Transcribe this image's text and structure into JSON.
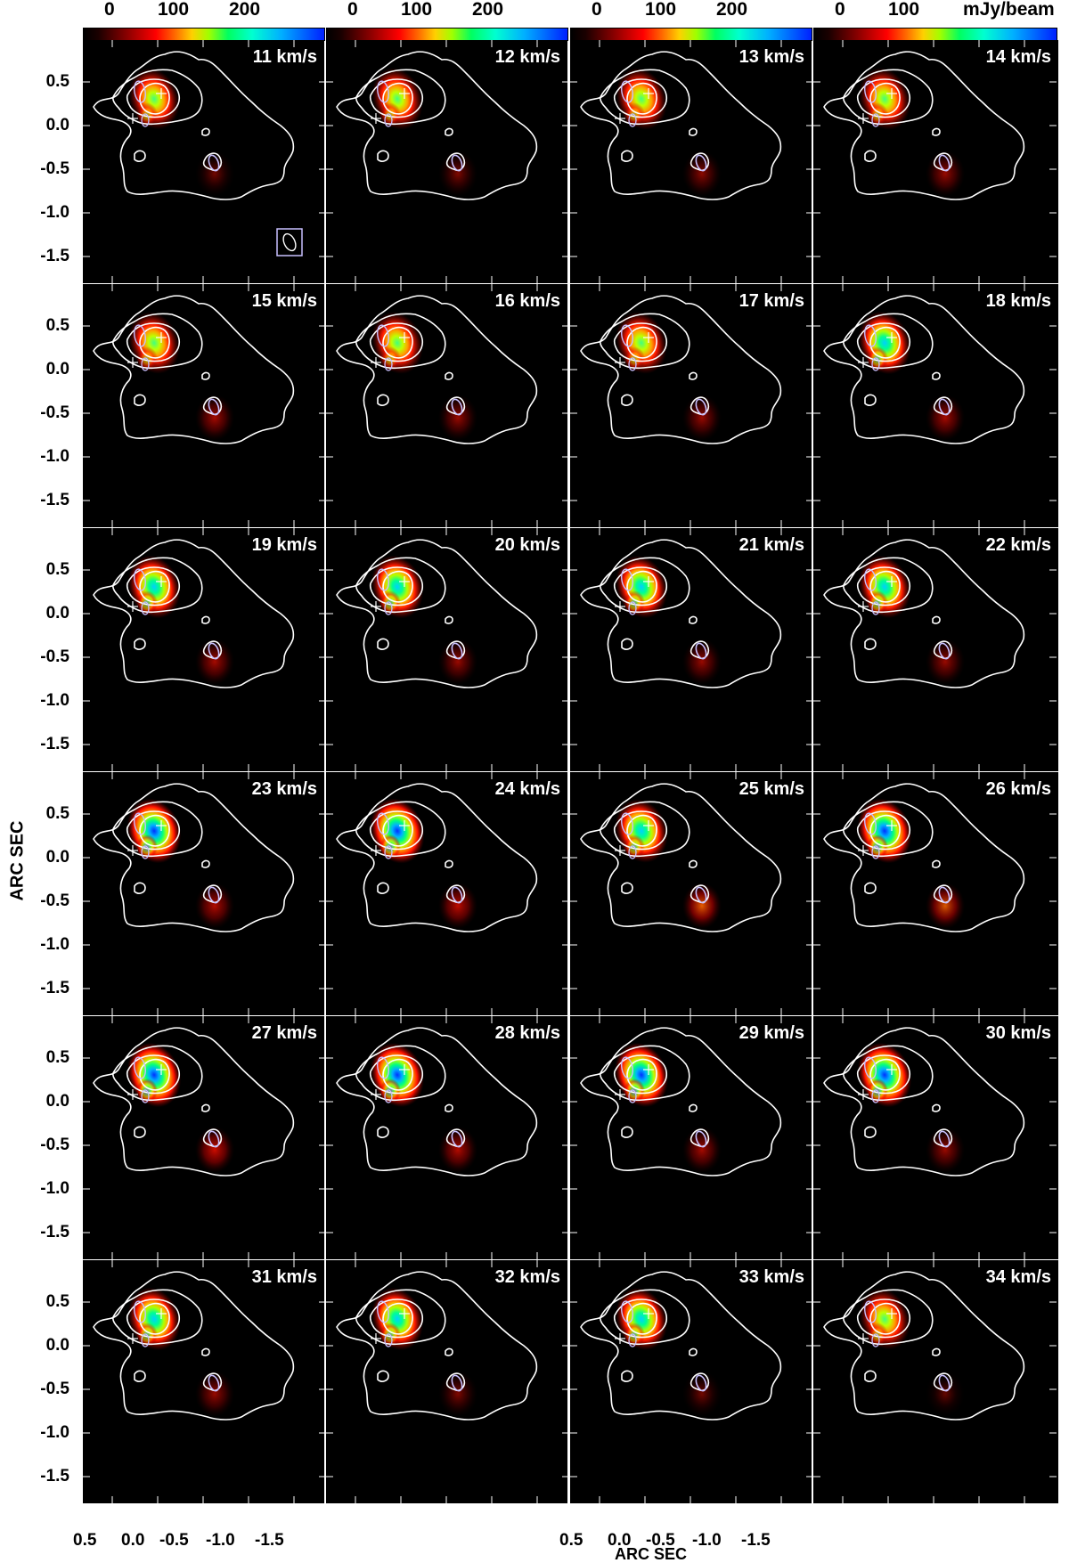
{
  "colorbar": {
    "ticks": [
      "0",
      "100",
      "200"
    ],
    "unit": "mJy/beam"
  },
  "axes": {
    "xlabel": "ARC SEC",
    "ylabel": "ARC SEC",
    "yticks": [
      "0.5",
      "0.0",
      "-0.5",
      "-1.0",
      "-1.5"
    ],
    "xticks": [
      "0.5",
      "0.0",
      "-0.5",
      "-1.0",
      "-1.5"
    ]
  },
  "panels": [
    {
      "velocity": "11 km/s",
      "core_peak": 0.55,
      "south_peak": 0.15
    },
    {
      "velocity": "12 km/s",
      "core_peak": 0.6,
      "south_peak": 0.2
    },
    {
      "velocity": "13 km/s",
      "core_peak": 0.6,
      "south_peak": 0.25
    },
    {
      "velocity": "14 km/s",
      "core_peak": 0.62,
      "south_peak": 0.3
    },
    {
      "velocity": "15 km/s",
      "core_peak": 0.6,
      "south_peak": 0.35
    },
    {
      "velocity": "16 km/s",
      "core_peak": 0.62,
      "south_peak": 0.3
    },
    {
      "velocity": "17 km/s",
      "core_peak": 0.62,
      "south_peak": 0.3
    },
    {
      "velocity": "18 km/s",
      "core_peak": 0.68,
      "south_peak": 0.35
    },
    {
      "velocity": "19 km/s",
      "core_peak": 0.7,
      "south_peak": 0.35
    },
    {
      "velocity": "20 km/s",
      "core_peak": 0.7,
      "south_peak": 0.3
    },
    {
      "velocity": "21 km/s",
      "core_peak": 0.66,
      "south_peak": 0.3
    },
    {
      "velocity": "22 km/s",
      "core_peak": 0.66,
      "south_peak": 0.3
    },
    {
      "velocity": "23 km/s",
      "core_peak": 0.85,
      "south_peak": 0.4
    },
    {
      "velocity": "24 km/s",
      "core_peak": 0.9,
      "south_peak": 0.45
    },
    {
      "velocity": "25 km/s",
      "core_peak": 0.75,
      "south_peak": 0.6
    },
    {
      "velocity": "26 km/s",
      "core_peak": 0.85,
      "south_peak": 0.55
    },
    {
      "velocity": "27 km/s",
      "core_peak": 0.85,
      "south_peak": 0.5
    },
    {
      "velocity": "28 km/s",
      "core_peak": 0.82,
      "south_peak": 0.4
    },
    {
      "velocity": "29 km/s",
      "core_peak": 0.82,
      "south_peak": 0.35
    },
    {
      "velocity": "30 km/s",
      "core_peak": 0.85,
      "south_peak": 0.3
    },
    {
      "velocity": "31 km/s",
      "core_peak": 0.7,
      "south_peak": 0.3
    },
    {
      "velocity": "32 km/s",
      "core_peak": 0.66,
      "south_peak": 0.2
    },
    {
      "velocity": "33 km/s",
      "core_peak": 0.66,
      "south_peak": 0.15
    },
    {
      "velocity": "34 km/s",
      "core_peak": 0.55,
      "south_peak": 0.1
    }
  ]
}
